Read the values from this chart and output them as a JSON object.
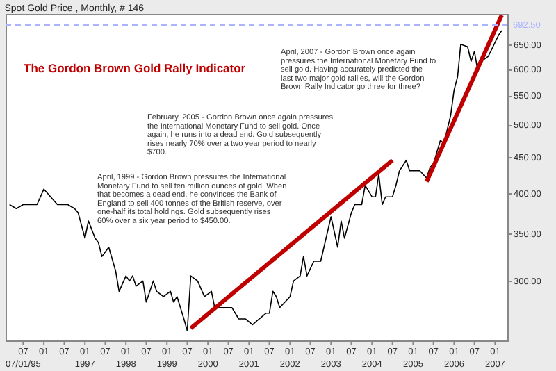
{
  "chart_data": {
    "type": "line",
    "title": "Spot Gold Price , Monthly, # 146",
    "x": [
      "1995-03",
      "1995-05",
      "1995-07",
      "1995-09",
      "1995-11",
      "1996-01",
      "1996-03",
      "1996-05",
      "1996-07",
      "1996-08",
      "1996-10",
      "1996-11",
      "1997-01",
      "1997-02",
      "1997-04",
      "1997-05",
      "1997-06",
      "1997-08",
      "1997-10",
      "1997-11",
      "1998-01",
      "1998-02",
      "1998-03",
      "1998-04",
      "1998-06",
      "1998-07",
      "1998-09",
      "1998-10",
      "1998-12",
      "1999-02",
      "1999-03",
      "1999-04",
      "1999-06",
      "1999-07",
      "1999-08",
      "1999-10",
      "1999-12",
      "2000-02",
      "2000-03",
      "2000-04",
      "2000-06",
      "2000-08",
      "2000-10",
      "2000-12",
      "2001-02",
      "2001-04",
      "2001-06",
      "2001-07",
      "2001-08",
      "2001-09",
      "2001-10",
      "2002-01",
      "2002-02",
      "2002-04",
      "2002-05",
      "2002-06",
      "2002-08",
      "2002-10",
      "2003-01",
      "2003-03",
      "2003-04",
      "2003-05",
      "2003-07",
      "2003-08",
      "2003-10",
      "2003-11",
      "2004-01",
      "2004-02",
      "2004-03",
      "2004-04",
      "2004-05",
      "2004-07",
      "2004-08",
      "2004-09",
      "2004-11",
      "2004-12",
      "2005-02",
      "2005-03",
      "2005-05",
      "2005-06",
      "2005-07",
      "2005-09",
      "2005-10",
      "2005-12",
      "2006-01",
      "2006-02",
      "2006-03",
      "2006-05",
      "2006-06",
      "2006-07",
      "2006-08",
      "2006-09",
      "2006-11",
      "2007-02",
      "2007-03"
    ],
    "series": [
      {
        "color": "#000000",
        "values": [
          385,
          380,
          385,
          385,
          385,
          405,
          395,
          385,
          385,
          385,
          380,
          375,
          345,
          365,
          345,
          340,
          325,
          335,
          310,
          290,
          305,
          300,
          305,
          295,
          300,
          280,
          300,
          290,
          285,
          290,
          280,
          285,
          265,
          255,
          305,
          300,
          285,
          290,
          275,
          275,
          275,
          275,
          265,
          265,
          260,
          265,
          270,
          270,
          290,
          285,
          275,
          285,
          300,
          305,
          325,
          305,
          320,
          320,
          370,
          335,
          365,
          345,
          375,
          385,
          385,
          410,
          395,
          395,
          425,
          385,
          395,
          395,
          410,
          430,
          445,
          430,
          430,
          430,
          420,
          435,
          440,
          475,
          470,
          515,
          560,
          585,
          650,
          645,
          615,
          635,
          595,
          615,
          625,
          670,
          680
        ]
      },
      {
        "type": "line",
        "color": "#c00000",
        "x": [
          "1999-08",
          "2004-07"
        ],
        "values": [
          257,
          445
        ]
      },
      {
        "type": "line",
        "color": "#c00000",
        "x": [
          "2005-05",
          "2007-03"
        ],
        "values": [
          415,
          715
        ]
      }
    ],
    "xlim": [
      "1995-01-25",
      "2007-04-20"
    ],
    "xticks": [
      {
        "value": "1995-07",
        "label": "07\n07/01/95"
      },
      {
        "value": "1996-01",
        "label": "01"
      },
      {
        "value": "1996-07",
        "label": "07"
      },
      {
        "value": "1997-01",
        "label": "01\n1997"
      },
      {
        "value": "1997-07",
        "label": "07"
      },
      {
        "value": "1998-01",
        "label": "01\n1998"
      },
      {
        "value": "1998-07",
        "label": "07"
      },
      {
        "value": "1999-01",
        "label": "01\n1999"
      },
      {
        "value": "1999-07",
        "label": "07"
      },
      {
        "value": "2000-01",
        "label": "01\n2000"
      },
      {
        "value": "2000-07",
        "label": "07"
      },
      {
        "value": "2001-01",
        "label": "01\n2001"
      },
      {
        "value": "2001-07",
        "label": "07"
      },
      {
        "value": "2002-01",
        "label": "01\n2002"
      },
      {
        "value": "2002-07",
        "label": "07"
      },
      {
        "value": "2003-01",
        "label": "01\n2003"
      },
      {
        "value": "2003-07",
        "label": "07"
      },
      {
        "value": "2004-01",
        "label": "01\n2004"
      },
      {
        "value": "2004-07",
        "label": "07"
      },
      {
        "value": "2005-01",
        "label": "01\n2005"
      },
      {
        "value": "2005-07",
        "label": "07"
      },
      {
        "value": "2006-01",
        "label": "01\n2006"
      },
      {
        "value": "2006-07",
        "label": "07"
      },
      {
        "value": "2007-01",
        "label": "01\n2007"
      }
    ],
    "ylim": [
      247,
      718
    ],
    "yticks": [
      {
        "value": 300,
        "label": "300.00"
      },
      {
        "value": 350,
        "label": "350.00"
      },
      {
        "value": 400,
        "label": "400.00"
      },
      {
        "value": 450,
        "label": "450.00"
      },
      {
        "value": 500,
        "label": "500.00"
      },
      {
        "value": 550,
        "label": "550.00"
      },
      {
        "value": 600,
        "label": "600.00"
      },
      {
        "value": 650,
        "label": "650.00"
      }
    ],
    "log": "y",
    "grid": false,
    "line_style": "solid",
    "ref_lines": [
      {
        "axis": "y",
        "value": 692.5,
        "label": "692.50",
        "color": "#aab4ff",
        "line_style": "dashed"
      }
    ],
    "annotations": [
      "The Gordon Brown Gold Rally Indicator",
      "April, 2007 - Gordon Brown once again pressures the International Monetary Fund to sell gold. Having accurately predicted the last two major gold rallies, will the Gordon Brown Rally Indicator go three for three?",
      "February, 2005 - Gordon Brown once again pressures the International Monetary Fund to sell gold. Once again, he runs into a  dead end. Gold subsequently rises nearly 70% over a two year period to nearly $700.",
      "April, 1999 - Gordon Brown pressures the International Monetary Fund to sell ten million ounces of gold. When that becomes a dead end, he convinces the Bank of England to sell 400 tonnes of the British reserve, over one-half its total holdings. Gold subsequently rises 60% over a six year period to $450.00."
    ]
  }
}
